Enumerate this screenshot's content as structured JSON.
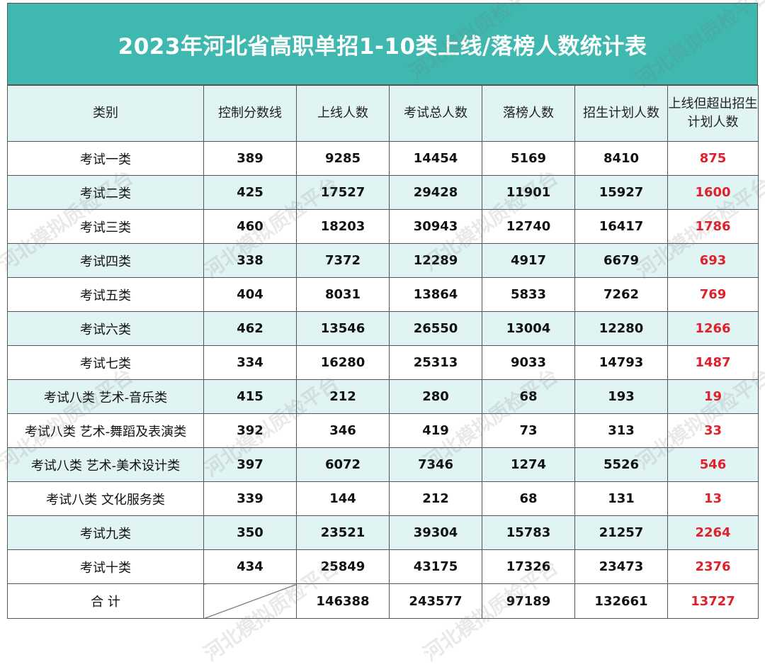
{
  "title": "2023年河北省高职单招1-10类上线/落榜人数统计表",
  "watermark": "河北模拟质检平台",
  "headers": [
    "类别",
    "控制分数线",
    "上线人数",
    "考试总人数",
    "落榜人数",
    "招生计划人数",
    "上线但超出招生计划人数"
  ],
  "rows": [
    {
      "cat": "考试一类",
      "line": "389",
      "pass": "9285",
      "total": "14454",
      "fail": "5169",
      "plan": "8410",
      "over": "875"
    },
    {
      "cat": "考试二类",
      "line": "425",
      "pass": "17527",
      "total": "29428",
      "fail": "11901",
      "plan": "15927",
      "over": "1600"
    },
    {
      "cat": "考试三类",
      "line": "460",
      "pass": "18203",
      "total": "30943",
      "fail": "12740",
      "plan": "16417",
      "over": "1786"
    },
    {
      "cat": "考试四类",
      "line": "338",
      "pass": "7372",
      "total": "12289",
      "fail": "4917",
      "plan": "6679",
      "over": "693"
    },
    {
      "cat": "考试五类",
      "line": "404",
      "pass": "8031",
      "total": "13864",
      "fail": "5833",
      "plan": "7262",
      "over": "769"
    },
    {
      "cat": "考试六类",
      "line": "462",
      "pass": "13546",
      "total": "26550",
      "fail": "13004",
      "plan": "12280",
      "over": "1266"
    },
    {
      "cat": "考试七类",
      "line": "334",
      "pass": "16280",
      "total": "25313",
      "fail": "9033",
      "plan": "14793",
      "over": "1487"
    },
    {
      "cat": "考试八类 艺术-音乐类",
      "line": "415",
      "pass": "212",
      "total": "280",
      "fail": "68",
      "plan": "193",
      "over": "19"
    },
    {
      "cat": "考试八类 艺术-舞蹈及表演类",
      "line": "392",
      "pass": "346",
      "total": "419",
      "fail": "73",
      "plan": "313",
      "over": "33"
    },
    {
      "cat": "考试八类 艺术-美术设计类",
      "line": "397",
      "pass": "6072",
      "total": "7346",
      "fail": "1274",
      "plan": "5526",
      "over": "546"
    },
    {
      "cat": "考试八类 文化服务类",
      "line": "339",
      "pass": "144",
      "total": "212",
      "fail": "68",
      "plan": "131",
      "over": "13"
    },
    {
      "cat": "考试九类",
      "line": "350",
      "pass": "23521",
      "total": "39304",
      "fail": "15783",
      "plan": "21257",
      "over": "2264"
    },
    {
      "cat": "考试十类",
      "line": "434",
      "pass": "25849",
      "total": "43175",
      "fail": "17326",
      "plan": "23473",
      "over": "2376"
    }
  ],
  "total_row": {
    "cat": "合  计",
    "line": "",
    "pass": "146388",
    "total": "243577",
    "fail": "97189",
    "plan": "132661",
    "over": "13727"
  }
}
